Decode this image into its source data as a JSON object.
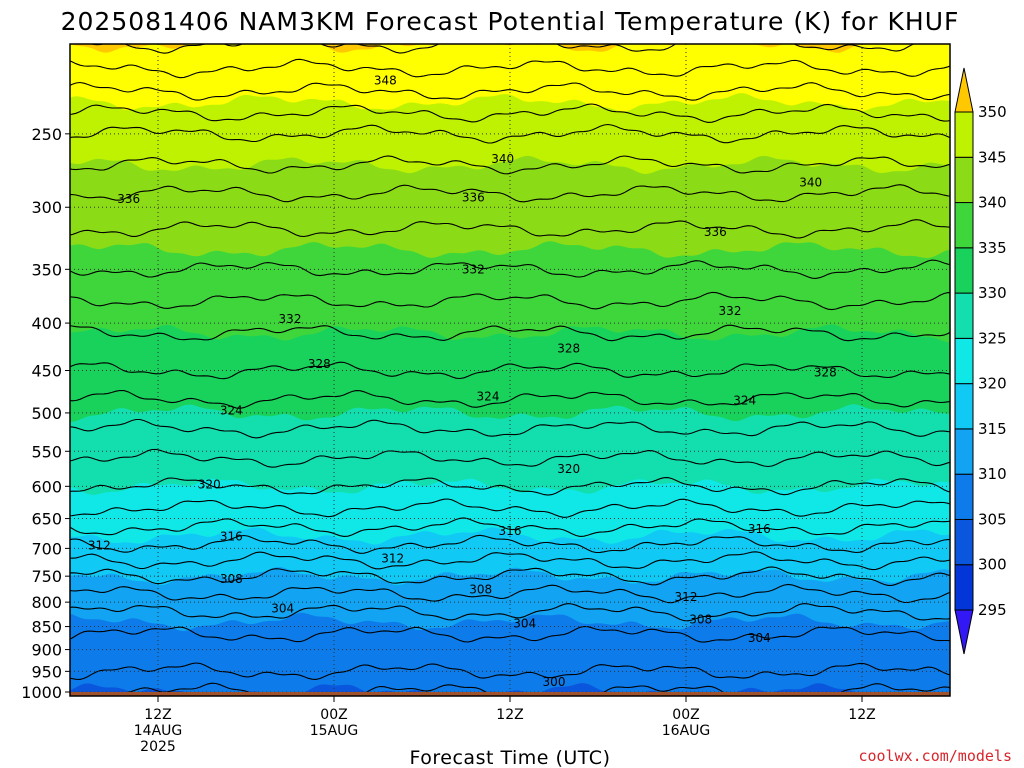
{
  "chart_data": {
    "type": "heatmap",
    "title": "2025081406 NAM3KM Forecast Potential Temperature (K) for KHUF",
    "xlabel": "Forecast Time (UTC)",
    "ylabel": "",
    "y_ticks": [
      250,
      300,
      350,
      400,
      450,
      500,
      550,
      600,
      650,
      700,
      750,
      800,
      850,
      900,
      950,
      1000
    ],
    "y_tick_labels": [
      "250",
      "300",
      "350",
      "400",
      "450",
      "500",
      "550",
      "600",
      "650",
      "700",
      "750",
      "800",
      "850",
      "900",
      "950",
      "1000"
    ],
    "ylim": [
      200,
      1010
    ],
    "y_scale": "log",
    "x_ticks": [
      {
        "hour": 6,
        "line1": "12Z",
        "line2": "14AUG",
        "line3": "2025"
      },
      {
        "hour": 18,
        "line1": "00Z",
        "line2": "15AUG",
        "line3": ""
      },
      {
        "hour": 30,
        "line1": "12Z",
        "line2": "",
        "line3": ""
      },
      {
        "hour": 42,
        "line1": "00Z",
        "line2": "16AUG",
        "line3": ""
      },
      {
        "hour": 54,
        "line1": "12Z",
        "line2": "",
        "line3": ""
      }
    ],
    "xlim": [
      0,
      60
    ],
    "grid": true,
    "colorbar": {
      "levels": [
        295,
        300,
        305,
        310,
        315,
        320,
        325,
        330,
        335,
        340,
        345,
        350
      ],
      "labels": [
        "295",
        "300",
        "305",
        "310",
        "315",
        "320",
        "325",
        "330",
        "335",
        "340",
        "345",
        "350"
      ],
      "colors": [
        "#3218f5",
        "#0336d9",
        "#0a57dd",
        "#0d7cea",
        "#12a3f2",
        "#10c9f5",
        "#10e8e8",
        "#13dfae",
        "#18d25c",
        "#3fd63c",
        "#8bdc16",
        "#bff200",
        "#ffff00",
        "#ffc800"
      ],
      "extend": "both"
    },
    "surface_pressure": 1000,
    "theta_profile": {
      "pressure": [
        200,
        250,
        300,
        350,
        400,
        450,
        500,
        550,
        600,
        650,
        700,
        750,
        800,
        850,
        900,
        950,
        1000
      ],
      "theta": [
        350,
        342,
        337,
        334,
        330.5,
        328,
        325,
        322.5,
        320,
        317,
        313.5,
        310,
        307,
        304.5,
        303,
        302,
        300
      ]
    },
    "contour_labels": [
      {
        "value": "348",
        "hour": 21.5,
        "p": 219
      },
      {
        "value": "340",
        "hour": 29.5,
        "p": 266
      },
      {
        "value": "340",
        "hour": 50.5,
        "p": 282
      },
      {
        "value": "336",
        "hour": 4,
        "p": 294
      },
      {
        "value": "336",
        "hour": 27.5,
        "p": 293
      },
      {
        "value": "336",
        "hour": 44,
        "p": 319
      },
      {
        "value": "332",
        "hour": 27.5,
        "p": 350
      },
      {
        "value": "332",
        "hour": 15,
        "p": 396
      },
      {
        "value": "332",
        "hour": 45,
        "p": 388
      },
      {
        "value": "328",
        "hour": 17,
        "p": 443
      },
      {
        "value": "328",
        "hour": 34,
        "p": 426
      },
      {
        "value": "328",
        "hour": 51.5,
        "p": 452
      },
      {
        "value": "324",
        "hour": 11,
        "p": 497
      },
      {
        "value": "324",
        "hour": 28.5,
        "p": 480
      },
      {
        "value": "324",
        "hour": 46,
        "p": 485
      },
      {
        "value": "320",
        "hour": 9.5,
        "p": 597
      },
      {
        "value": "320",
        "hour": 34,
        "p": 575
      },
      {
        "value": "316",
        "hour": 11,
        "p": 680
      },
      {
        "value": "316",
        "hour": 30,
        "p": 670
      },
      {
        "value": "316",
        "hour": 47,
        "p": 667
      },
      {
        "value": "312",
        "hour": 2,
        "p": 695
      },
      {
        "value": "312",
        "hour": 22,
        "p": 718
      },
      {
        "value": "312",
        "hour": 42,
        "p": 790
      },
      {
        "value": "308",
        "hour": 11,
        "p": 755
      },
      {
        "value": "308",
        "hour": 28,
        "p": 775
      },
      {
        "value": "308",
        "hour": 43,
        "p": 835
      },
      {
        "value": "304",
        "hour": 14.5,
        "p": 813
      },
      {
        "value": "304",
        "hour": 31,
        "p": 844
      },
      {
        "value": "304",
        "hour": 47,
        "p": 875
      },
      {
        "value": "300",
        "hour": 33,
        "p": 975
      }
    ]
  },
  "credit": "coolwx.com/models"
}
